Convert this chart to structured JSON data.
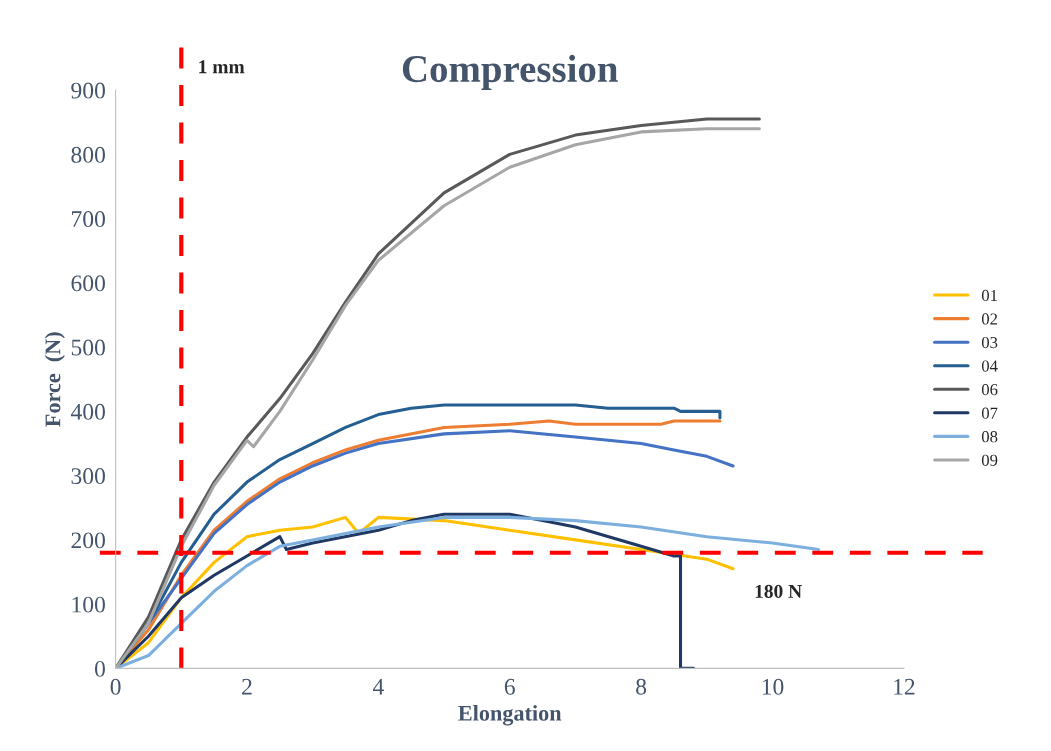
{
  "chart_data": {
    "type": "line",
    "title": "Compression",
    "xlabel": "Elongation",
    "ylabel": "Force  (N)",
    "xlim": [
      0,
      12
    ],
    "xticks": [
      0,
      2,
      4,
      6,
      8,
      10,
      12
    ],
    "ylim": [
      0,
      900
    ],
    "yticks": [
      0,
      100,
      200,
      300,
      400,
      500,
      600,
      700,
      800,
      900
    ],
    "grid": false,
    "legend": "right",
    "ref_lines": [
      {
        "axis": "x",
        "value": 1,
        "label": "1 mm",
        "color": "#ff0000",
        "line_style": "dashed"
      },
      {
        "axis": "y",
        "value": 180,
        "label": "180 N",
        "color": "#ff0000",
        "line_style": "dashed"
      }
    ],
    "series": [
      {
        "name": "01",
        "color": "#ffc000",
        "x": [
          0,
          0.5,
          1,
          1.5,
          2,
          2.5,
          3,
          3.5,
          3.7,
          4,
          5,
          6,
          7,
          8,
          9,
          9.4
        ],
        "values": [
          0,
          40,
          110,
          165,
          205,
          215,
          220,
          235,
          210,
          235,
          230,
          215,
          200,
          185,
          170,
          155
        ]
      },
      {
        "name": "02",
        "color": "#ed7d31",
        "x": [
          0,
          0.5,
          1,
          1.5,
          2,
          2.5,
          3,
          3.5,
          4,
          5,
          6,
          6.6,
          7,
          8.3,
          8.5,
          9.2
        ],
        "values": [
          0,
          60,
          145,
          215,
          260,
          295,
          320,
          340,
          355,
          375,
          380,
          385,
          380,
          380,
          385,
          385
        ]
      },
      {
        "name": "03",
        "color": "#4472c4",
        "x": [
          0,
          0.5,
          1,
          1.5,
          2,
          2.5,
          3,
          3.5,
          4,
          5,
          6,
          7,
          8,
          8.5,
          9,
          9.4
        ],
        "values": [
          0,
          70,
          140,
          210,
          255,
          290,
          315,
          335,
          350,
          365,
          370,
          360,
          350,
          340,
          330,
          315
        ]
      },
      {
        "name": "04",
        "color": "#255e91",
        "x": [
          0,
          0.5,
          1,
          1.5,
          2,
          2.5,
          3,
          3.5,
          4,
          4.5,
          5,
          7,
          7.5,
          8.5,
          8.6,
          9.2,
          9.2
        ],
        "values": [
          0,
          70,
          165,
          240,
          290,
          325,
          350,
          375,
          395,
          405,
          410,
          410,
          405,
          405,
          400,
          400,
          390
        ]
      },
      {
        "name": "06",
        "color": "#595959",
        "x": [
          0,
          0.5,
          1,
          1.5,
          2,
          2.5,
          3,
          3.5,
          4,
          5,
          6,
          7,
          8,
          9,
          9.8
        ],
        "values": [
          0,
          80,
          200,
          290,
          360,
          420,
          490,
          570,
          645,
          740,
          800,
          830,
          845,
          855,
          855
        ]
      },
      {
        "name": "07",
        "color": "#1f3864",
        "x": [
          0,
          0.5,
          1,
          1.5,
          2,
          2.5,
          2.6,
          3,
          4,
          4.5,
          5,
          6,
          6.5,
          7,
          8,
          8.5,
          8.6,
          8.6,
          8.8
        ],
        "values": [
          0,
          50,
          110,
          145,
          175,
          205,
          185,
          195,
          215,
          230,
          240,
          240,
          230,
          220,
          190,
          175,
          175,
          0,
          0
        ]
      },
      {
        "name": "08",
        "color": "#7cafdd",
        "x": [
          0,
          0.5,
          1,
          1.5,
          2,
          2.5,
          3,
          4,
          5,
          6,
          7,
          8,
          9,
          10,
          10.7
        ],
        "values": [
          0,
          20,
          70,
          120,
          160,
          190,
          200,
          220,
          235,
          235,
          230,
          220,
          205,
          195,
          185
        ]
      },
      {
        "name": "09",
        "color": "#a6a6a6",
        "x": [
          0,
          0.5,
          1,
          1.5,
          2,
          2.1,
          2.5,
          3,
          3.5,
          4,
          5,
          6,
          7,
          8,
          9,
          9.8
        ],
        "values": [
          0,
          70,
          190,
          285,
          355,
          345,
          400,
          480,
          565,
          635,
          720,
          780,
          815,
          835,
          840,
          840
        ]
      }
    ]
  }
}
